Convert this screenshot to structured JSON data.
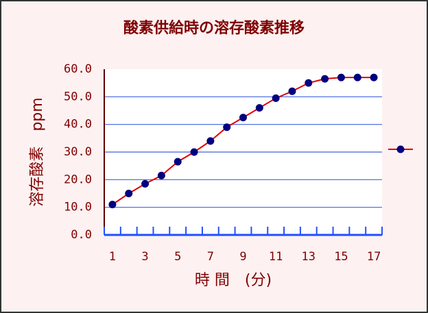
{
  "chart_data": {
    "type": "line",
    "title": "酸素供給時の溶存酸素推移",
    "x_label": "時 間　(分)",
    "y_label": "溶存酸素　ppm",
    "categories": [
      "1",
      null,
      "3",
      null,
      "5",
      null,
      "7",
      null,
      "9",
      null,
      "11",
      null,
      "13",
      null,
      "15",
      null,
      "17"
    ],
    "series": [
      {
        "color": "#e00000",
        "marker_color": "#000080",
        "values": [
          11,
          15,
          18.5,
          21.5,
          26.5,
          30,
          34,
          39,
          42.5,
          46,
          49.5,
          52,
          55,
          56.5,
          57,
          57,
          57
        ]
      }
    ],
    "ylim": [
      0,
      60
    ],
    "yticks": [
      {
        "value": 0,
        "label": "0.0"
      },
      {
        "value": 10,
        "label": "10.0"
      },
      {
        "value": 20,
        "label": "20.0"
      },
      {
        "value": 30,
        "label": "30.0"
      },
      {
        "value": 40,
        "label": "40.0"
      },
      {
        "value": 50,
        "label": "50.0"
      },
      {
        "value": 60,
        "label": "60.0"
      }
    ],
    "grid": true
  }
}
